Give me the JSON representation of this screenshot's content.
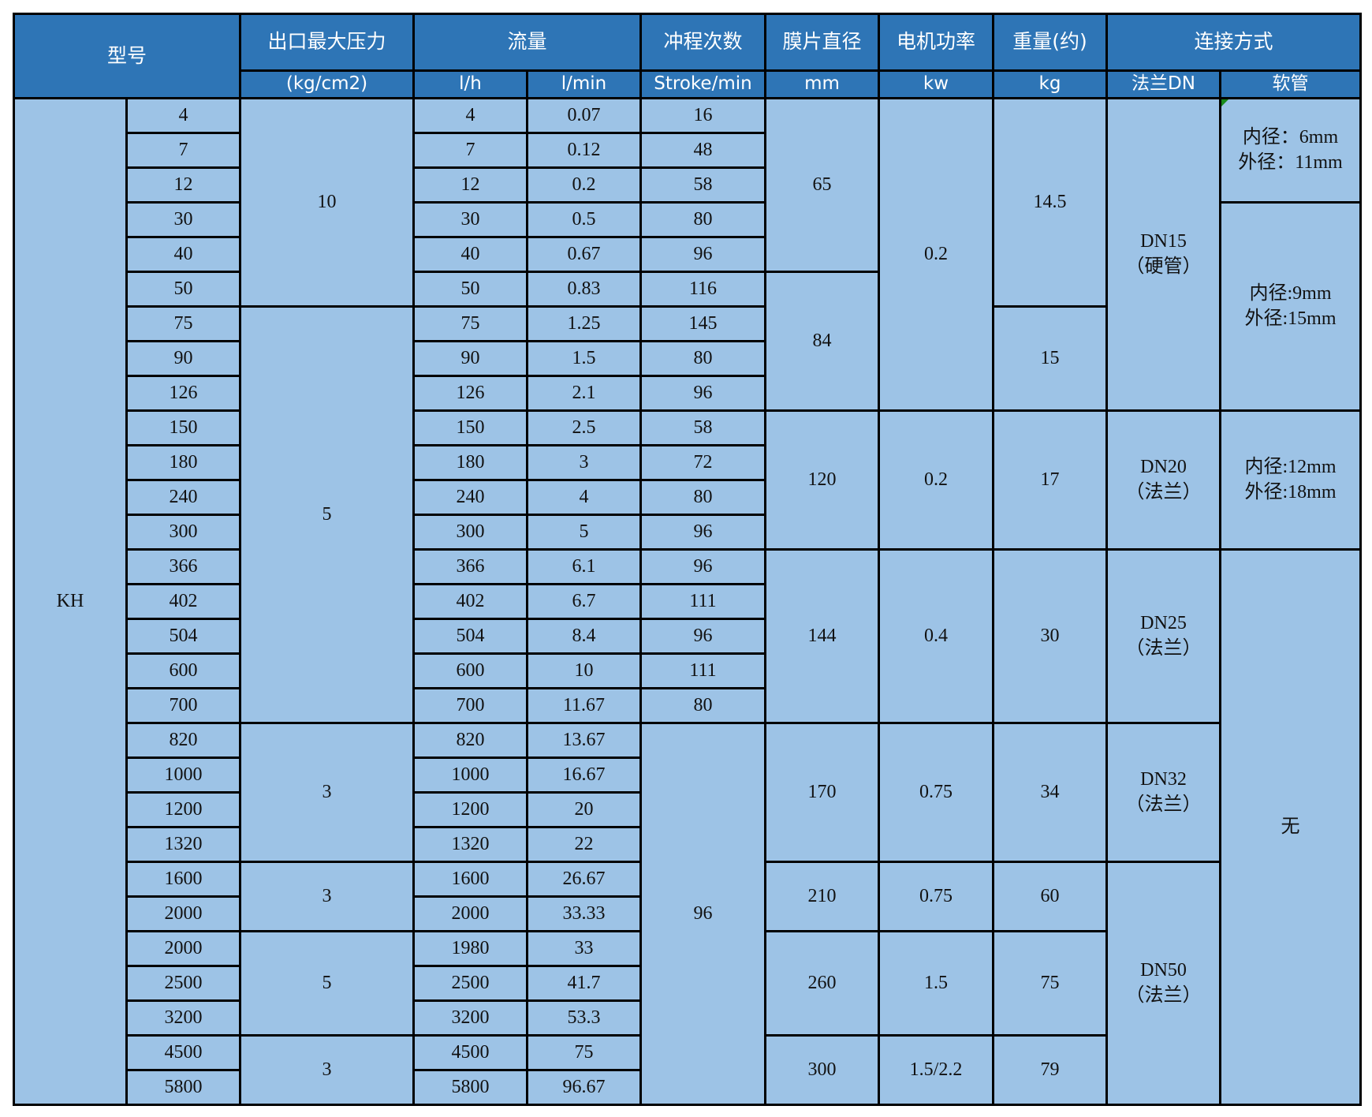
{
  "headers": {
    "model": "型号",
    "pressure": "出口最大压力",
    "flow": "流量",
    "stroke": "冲程次数",
    "diaphragm": "膜片直径",
    "power": "电机功率",
    "weight": "重量(约)",
    "connection": "连接方式"
  },
  "units": {
    "pressure": "(kg/cm2)",
    "flow_lh": "l/h",
    "flow_lmin": "l/min",
    "stroke": "Stroke/min",
    "diaphragm": "mm",
    "power": "kw",
    "weight": "kg",
    "flange": "法兰DN",
    "hose": "软管"
  },
  "series": "KH",
  "models": [
    "4",
    "7",
    "12",
    "30",
    "40",
    "50",
    "75",
    "90",
    "126",
    "150",
    "180",
    "240",
    "300",
    "366",
    "402",
    "504",
    "600",
    "700",
    "820",
    "1000",
    "1200",
    "1320",
    "1600",
    "2000",
    "2000",
    "2500",
    "3200",
    "4500",
    "5800"
  ],
  "flow_lh": [
    "4",
    "7",
    "12",
    "30",
    "40",
    "50",
    "75",
    "90",
    "126",
    "150",
    "180",
    "240",
    "300",
    "366",
    "402",
    "504",
    "600",
    "700",
    "820",
    "1000",
    "1200",
    "1320",
    "1600",
    "2000",
    "1980",
    "2500",
    "3200",
    "4500",
    "5800"
  ],
  "flow_lmin": [
    "0.07",
    "0.12",
    "0.2",
    "0.5",
    "0.67",
    "0.83",
    "1.25",
    "1.5",
    "2.1",
    "2.5",
    "3",
    "4",
    "5",
    "6.1",
    "6.7",
    "8.4",
    "10",
    "11.67",
    "13.67",
    "16.67",
    "20",
    "22",
    "26.67",
    "33.33",
    "33",
    "41.7",
    "53.3",
    "75",
    "96.67"
  ],
  "pressure_groups": [
    "10",
    "5",
    "3",
    "3",
    "5",
    "3"
  ],
  "stroke_groups": [
    "16",
    "48",
    "58",
    "80",
    "96",
    "116",
    "145",
    "80",
    "96",
    "58",
    "72",
    "80",
    "96",
    "96",
    "111",
    "96",
    "111",
    "80",
    "96"
  ],
  "diaphragm_groups": [
    "65",
    "84",
    "120",
    "144",
    "170",
    "210",
    "260",
    "300"
  ],
  "power_groups": [
    "0.2",
    "0.2",
    "0.4",
    "0.75",
    "0.75",
    "1.5",
    "1.5/2.2"
  ],
  "weight_groups": [
    "14.5",
    "15",
    "17",
    "30",
    "34",
    "60",
    "75",
    "79"
  ],
  "flange_groups": [
    "DN15\n（硬管）",
    "DN20\n（法兰）",
    "DN25\n（法兰）",
    "DN32\n（法兰）",
    "DN50\n（法兰）"
  ],
  "hose_groups": [
    "内径：6mm\n外径：11mm",
    "内径:9mm\n外径:15mm",
    "内径:12mm\n外径:18mm",
    "无"
  ],
  "colors": {
    "header": "#2e75b6",
    "cell": "#9dc3e6",
    "border": "#000000"
  }
}
